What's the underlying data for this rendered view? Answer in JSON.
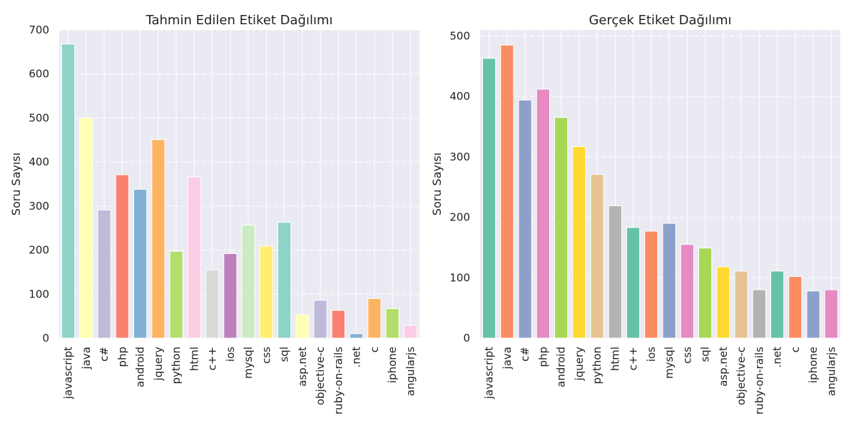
{
  "chart_data": [
    {
      "type": "bar",
      "title": "Tahmin Edilen Etiket Dağılımı",
      "xlabel": "",
      "ylabel": "Soru Sayısı",
      "ylim": [
        0,
        700
      ],
      "yticks": [
        0,
        100,
        200,
        300,
        400,
        500,
        600,
        700
      ],
      "grid": true,
      "categories": [
        "javascript",
        "java",
        "c#",
        "php",
        "android",
        "jquery",
        "python",
        "html",
        "c++",
        "ios",
        "mysql",
        "css",
        "sql",
        "asp.net",
        "objective-c",
        "ruby-on-rails",
        ".net",
        "c",
        "iphone",
        "angularjs"
      ],
      "values": [
        668,
        500,
        291,
        371,
        338,
        451,
        197,
        366,
        155,
        192,
        257,
        209,
        263,
        53,
        86,
        63,
        10,
        90,
        67,
        29
      ],
      "colors": [
        "#8dd3c7",
        "#ffffb3",
        "#bebada",
        "#fb8072",
        "#80b1d3",
        "#fdb462",
        "#b3de69",
        "#fccde5",
        "#d9d9d9",
        "#bc80bd",
        "#ccebc5",
        "#ffed6f",
        "#8dd3c7",
        "#ffffb3",
        "#bebada",
        "#fb8072",
        "#80b1d3",
        "#fdb462",
        "#b3de69",
        "#fccde5"
      ]
    },
    {
      "type": "bar",
      "title": "Gerçek Etiket Dağılımı",
      "xlabel": "",
      "ylabel": "Soru Sayısı",
      "ylim": [
        0,
        510
      ],
      "yticks": [
        0,
        100,
        200,
        300,
        400,
        500
      ],
      "grid": true,
      "categories": [
        "javascript",
        "java",
        "c#",
        "php",
        "android",
        "jquery",
        "python",
        "html",
        "c++",
        "ios",
        "mysql",
        "css",
        "sql",
        "asp.net",
        "objective-c",
        "ruby-on-rails",
        ".net",
        "c",
        "iphone",
        "angularjs"
      ],
      "values": [
        463,
        485,
        394,
        412,
        365,
        317,
        271,
        219,
        183,
        177,
        190,
        155,
        149,
        118,
        111,
        80,
        111,
        102,
        78,
        80
      ],
      "colors": [
        "#66c2a5",
        "#fc8d62",
        "#8da0cb",
        "#e78ac3",
        "#a6d854",
        "#ffd92f",
        "#e5c494",
        "#b3b3b3",
        "#66c2a5",
        "#fc8d62",
        "#8da0cb",
        "#e78ac3",
        "#a6d854",
        "#ffd92f",
        "#e5c494",
        "#b3b3b3",
        "#66c2a5",
        "#fc8d62",
        "#8da0cb",
        "#e78ac3"
      ]
    }
  ]
}
